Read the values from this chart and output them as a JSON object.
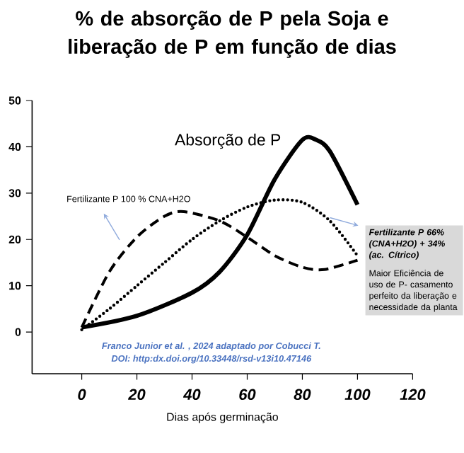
{
  "chart_data": {
    "type": "line",
    "title": "% de absorção de P pela Soja e liberação de P em função de dias",
    "xlabel": "Dias após germinação",
    "marker": "none",
    "xlim": [
      -18,
      120
    ],
    "ylim": [
      -9,
      50
    ],
    "xticks": [
      0,
      20,
      40,
      60,
      80,
      100,
      120
    ],
    "yticks": [
      0,
      10,
      20,
      30,
      40,
      50
    ],
    "series": [
      {
        "name": "Absorção de P",
        "color": "#000000",
        "line_style": "solid",
        "x": [
          0,
          20,
          40,
          50,
          60,
          70,
          80,
          85,
          90,
          100
        ],
        "values": [
          1,
          3.5,
          8.5,
          13,
          21,
          33,
          41.5,
          41.5,
          39,
          27.5
        ]
      },
      {
        "name": "Fertilizante P 100 % CNA+H2O",
        "color": "#000000",
        "line_style": "dashed",
        "x": [
          0,
          10,
          20,
          30,
          37,
          50,
          60,
          70,
          80,
          88,
          100
        ],
        "values": [
          1,
          13,
          20.5,
          25,
          26,
          24,
          20.5,
          16.5,
          14,
          13.5,
          15.5
        ]
      },
      {
        "name": "Fertilizante P 66% (CNA+H2O) + 34% (ac. Cítrico)",
        "color": "#000000",
        "line_style": "dotted",
        "x": [
          0,
          10,
          20,
          30,
          40,
          50,
          60,
          70,
          80,
          90,
          100
        ],
        "values": [
          0.5,
          5,
          10,
          15,
          20,
          24,
          27,
          28.5,
          28,
          24,
          16.5
        ]
      }
    ],
    "annotations": [
      "Franco Junior et al. , 2024 adaptado por Cobucci T.",
      "DOI: http:dx.doi.org/10.33448/rsd-v13i10.47146",
      "Maior Eficiência de uso de P- casamento perfeito da liberação e necessidade da planta"
    ]
  }
}
